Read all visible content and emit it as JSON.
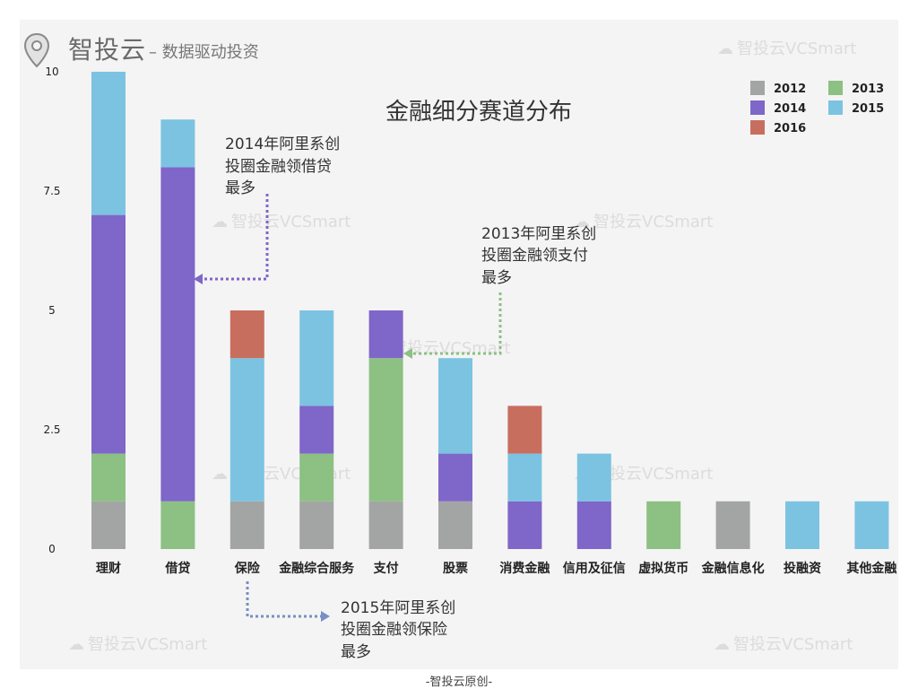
{
  "brand": {
    "title": "智投云",
    "subtitle": "– 数据驱动投资",
    "watermark": "智投云VCSmart",
    "footer": "-智投云原创-"
  },
  "colors": {
    "2012": "#a3a5a5",
    "2013": "#8dc083",
    "2014": "#7f66c9",
    "2015": "#7cc3e2",
    "2016": "#c86e5e",
    "background": "#f4f4f4"
  },
  "annotations": [
    {
      "id": "loan",
      "lines": [
        "2014年阿里系创",
        "投圈金融领借贷",
        "最多"
      ],
      "color": "#7f66c9"
    },
    {
      "id": "pay",
      "lines": [
        "2013年阿里系创",
        "投圈金融领支付",
        "最多"
      ],
      "color": "#8dc083"
    },
    {
      "id": "insurance",
      "lines": [
        "2015年阿里系创",
        "投圈金融领保险",
        "最多"
      ],
      "color": "#7a8fc4"
    }
  ],
  "chart_data": {
    "type": "bar",
    "stacked": true,
    "title": "金融细分赛道分布",
    "xlabel": "",
    "ylabel": "",
    "ylim": [
      0,
      10
    ],
    "yticks": [
      0,
      2.5,
      5,
      7.5,
      10
    ],
    "ytick_labels": [
      "0",
      "2.5",
      "5",
      "7.5",
      "10"
    ],
    "legend_position": "top-right",
    "grid": false,
    "categories": [
      "理财",
      "借贷",
      "保险",
      "金融综合服务",
      "支付",
      "股票",
      "消费金融",
      "信用及征信",
      "虚拟货币",
      "金融信息化",
      "投融资",
      "其他金融"
    ],
    "series": [
      {
        "name": "2012",
        "values": [
          1,
          0,
          1,
          1,
          1,
          1,
          0,
          0,
          0,
          1,
          0,
          0
        ]
      },
      {
        "name": "2013",
        "values": [
          1,
          1,
          0,
          1,
          3,
          0,
          0,
          0,
          1,
          0,
          0,
          0
        ]
      },
      {
        "name": "2014",
        "values": [
          5,
          7,
          0,
          1,
          1,
          1,
          1,
          1,
          0,
          0,
          0,
          0
        ]
      },
      {
        "name": "2015",
        "values": [
          3,
          1,
          3,
          2,
          0,
          2,
          1,
          1,
          0,
          0,
          1,
          1
        ]
      },
      {
        "name": "2016",
        "values": [
          0,
          0,
          1,
          0,
          0,
          0,
          1,
          0,
          0,
          0,
          0,
          0
        ]
      }
    ]
  }
}
